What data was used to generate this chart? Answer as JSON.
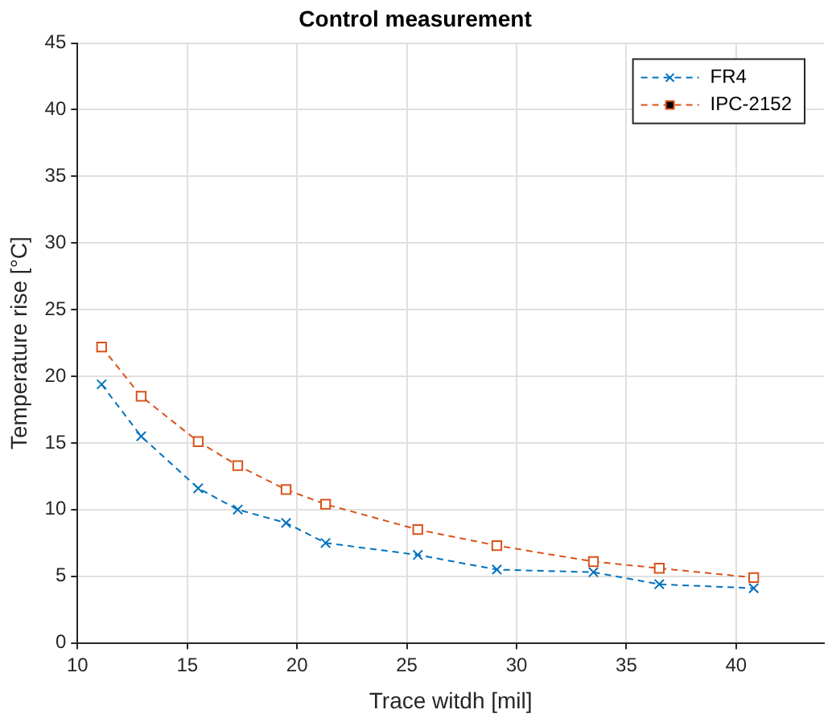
{
  "chart_data": {
    "type": "line",
    "title": "Control measurement",
    "xlabel": "Trace witdh [mil]",
    "ylabel": "Temperature rise [°C]",
    "x": [
      11.1,
      12.9,
      15.5,
      17.3,
      19.5,
      21.3,
      25.5,
      29.1,
      33.5,
      36.5,
      40.8
    ],
    "series": [
      {
        "name": "FR4",
        "color": "#0072bd",
        "marker": "cross",
        "values": [
          19.4,
          15.5,
          11.6,
          10.0,
          9.0,
          7.5,
          6.6,
          5.5,
          5.3,
          4.4,
          4.1
        ]
      },
      {
        "name": "IPC-2152",
        "color": "#d95319",
        "marker": "square",
        "values": [
          22.2,
          18.5,
          15.1,
          13.3,
          11.5,
          10.4,
          8.5,
          7.3,
          6.1,
          5.6,
          4.9
        ]
      }
    ],
    "xlim": [
      10,
      44
    ],
    "xticks": [
      10,
      15,
      20,
      25,
      30,
      35,
      40
    ],
    "ylim": [
      0,
      45
    ],
    "yticks": [
      0,
      5,
      10,
      15,
      20,
      25,
      30,
      35,
      40,
      45
    ],
    "grid": true,
    "legend": "top right",
    "line_style": "dashed"
  }
}
